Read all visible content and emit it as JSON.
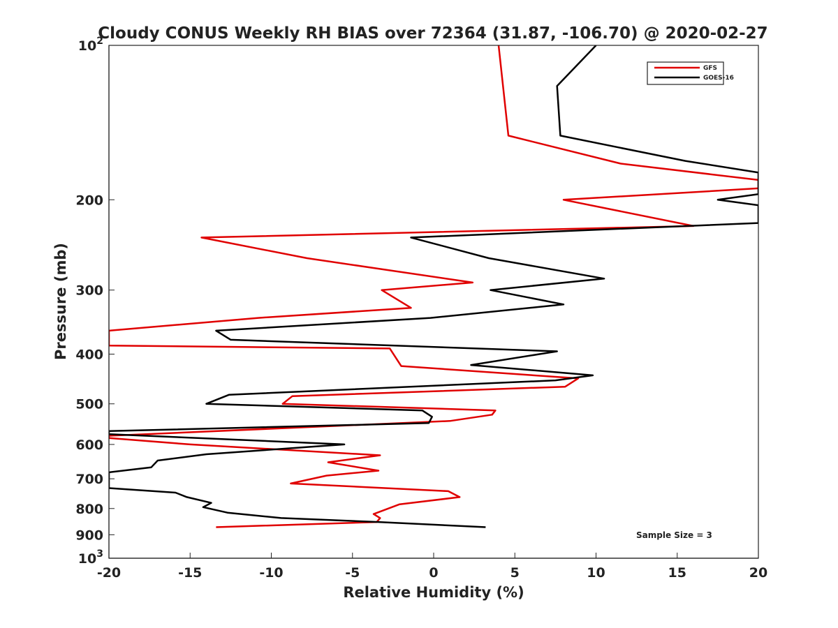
{
  "chart_data": {
    "type": "line",
    "title": "Cloudy CONUS Weekly RH BIAS over 72364 (31.87, -106.70) @ 2020-02-27",
    "xlabel": "Relative Humidity (%)",
    "ylabel": "Pressure (mb)",
    "xlim": [
      -20,
      20
    ],
    "ylim": [
      100,
      1000
    ],
    "y_scale": "log",
    "y_reversed": true,
    "grid": false,
    "legend_position": "top-right",
    "x_ticks": [
      "-20",
      "-15",
      "-10",
      "-5",
      "0",
      "5",
      "10",
      "15",
      "20"
    ],
    "y_ticks": [
      {
        "value": 100,
        "label": "10",
        "sup": "2"
      },
      {
        "value": 200,
        "label": "200",
        "sup": ""
      },
      {
        "value": 300,
        "label": "300",
        "sup": ""
      },
      {
        "value": 400,
        "label": "400",
        "sup": ""
      },
      {
        "value": 500,
        "label": "500",
        "sup": ""
      },
      {
        "value": 600,
        "label": "600",
        "sup": ""
      },
      {
        "value": 700,
        "label": "700",
        "sup": ""
      },
      {
        "value": 800,
        "label": "800",
        "sup": ""
      },
      {
        "value": 900,
        "label": "900",
        "sup": ""
      },
      {
        "value": 1000,
        "label": "10",
        "sup": "3"
      }
    ],
    "annotation": "Sample Size = 3",
    "series": [
      {
        "name": "GFS",
        "color": "#e00000",
        "points": [
          [
            4.0,
            100
          ],
          [
            4.6,
            150
          ],
          [
            11.5,
            170
          ],
          [
            20,
            183
          ],
          [
            20,
            190
          ],
          [
            8,
            200
          ],
          [
            16,
            225
          ],
          [
            -14.3,
            237
          ],
          [
            -7.8,
            260
          ],
          [
            2.4,
            290
          ],
          [
            -3.2,
            300
          ],
          [
            -1.4,
            325
          ],
          [
            -10.8,
            340
          ],
          [
            -20,
            360
          ],
          [
            -20,
            385
          ],
          [
            -2.7,
            390
          ],
          [
            -2.0,
            422
          ],
          [
            8.9,
            446
          ],
          [
            8.1,
            463
          ],
          [
            -8.7,
            483
          ],
          [
            -9.3,
            500
          ],
          [
            3.8,
            515
          ],
          [
            3.6,
            525
          ],
          [
            1.0,
            540
          ],
          [
            -20,
            577
          ],
          [
            -20,
            583
          ],
          [
            -15,
            600
          ],
          [
            -3.3,
            630
          ],
          [
            -6.5,
            650
          ],
          [
            -3.4,
            675
          ],
          [
            -6.6,
            690
          ],
          [
            -8.8,
            715
          ],
          [
            0.9,
            740
          ],
          [
            1.6,
            760
          ],
          [
            -2.1,
            785
          ],
          [
            -3.7,
            820
          ],
          [
            -3.3,
            835
          ],
          [
            -3.5,
            850
          ],
          [
            -13.4,
            870
          ]
        ]
      },
      {
        "name": "GOES-16",
        "color": "#000000",
        "points": [
          [
            10.0,
            100
          ],
          [
            7.6,
            120
          ],
          [
            7.8,
            150
          ],
          [
            15.5,
            168
          ],
          [
            20,
            177
          ],
          [
            20,
            195
          ],
          [
            17.5,
            200
          ],
          [
            20,
            205
          ],
          [
            20,
            222
          ],
          [
            -1.4,
            237
          ],
          [
            3.4,
            260
          ],
          [
            10.5,
            285
          ],
          [
            3.5,
            300
          ],
          [
            8.0,
            320
          ],
          [
            -0.2,
            340
          ],
          [
            -13.4,
            360
          ],
          [
            -12.5,
            375
          ],
          [
            7.6,
            395
          ],
          [
            2.3,
            420
          ],
          [
            9.8,
            440
          ],
          [
            7.5,
            450
          ],
          [
            -12.6,
            480
          ],
          [
            -14.0,
            500
          ],
          [
            -0.7,
            515
          ],
          [
            -0.1,
            530
          ],
          [
            -0.3,
            545
          ],
          [
            -20,
            565
          ],
          [
            -20,
            573
          ],
          [
            -5.5,
            600
          ],
          [
            -14.0,
            627
          ],
          [
            -17.0,
            645
          ],
          [
            -17.4,
            665
          ],
          [
            -20,
            680
          ],
          [
            -20,
            730
          ],
          [
            -15.9,
            745
          ],
          [
            -15.2,
            760
          ],
          [
            -13.7,
            780
          ],
          [
            -14.2,
            795
          ],
          [
            -12.7,
            815
          ],
          [
            -9.4,
            835
          ],
          [
            -3.4,
            850
          ],
          [
            3.2,
            870
          ]
        ]
      }
    ]
  }
}
